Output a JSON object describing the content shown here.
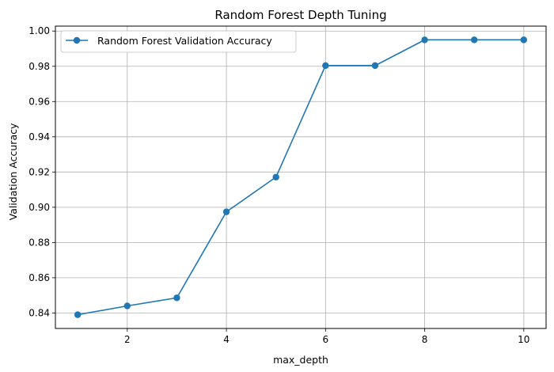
{
  "chart_data": {
    "type": "line",
    "title": "Random Forest Depth Tuning",
    "xlabel": "max_depth",
    "ylabel": "Validation Accuracy",
    "x": [
      1,
      2,
      3,
      4,
      5,
      6,
      7,
      8,
      9,
      10
    ],
    "series": [
      {
        "name": "Random Forest Validation Accuracy",
        "values": [
          0.839,
          0.844,
          0.8486,
          0.8974,
          0.9171,
          0.9804,
          0.9804,
          0.995,
          0.995,
          0.995
        ],
        "color": "#1f77b4",
        "marker": "circle"
      }
    ],
    "xlim": [
      0.55,
      10.45
    ],
    "ylim": [
      0.8312,
      1.0028
    ],
    "xticks": [
      2,
      4,
      6,
      8,
      10
    ],
    "yticks": [
      0.84,
      0.86,
      0.88,
      0.9,
      0.92,
      0.94,
      0.96,
      0.98,
      1.0
    ],
    "xtick_labels": [
      "2",
      "4",
      "6",
      "8",
      "10"
    ],
    "ytick_labels": [
      "0.84",
      "0.86",
      "0.88",
      "0.90",
      "0.92",
      "0.94",
      "0.96",
      "0.98",
      "1.00"
    ],
    "grid": true,
    "legend_position": "upper-left"
  }
}
